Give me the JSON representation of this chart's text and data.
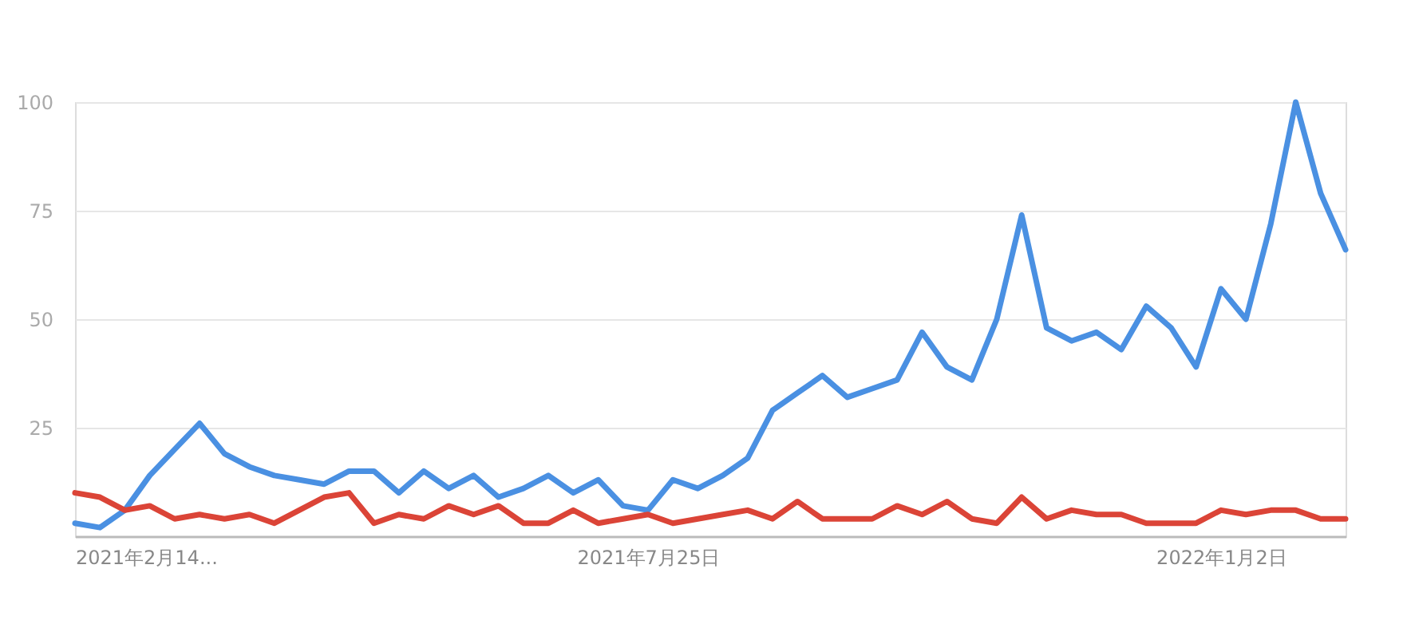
{
  "chart_data": {
    "type": "line",
    "x": [
      "2021-02-14",
      "2021-02-21",
      "2021-02-28",
      "2021-03-07",
      "2021-03-14",
      "2021-03-21",
      "2021-03-28",
      "2021-04-04",
      "2021-04-11",
      "2021-04-18",
      "2021-04-25",
      "2021-05-02",
      "2021-05-09",
      "2021-05-16",
      "2021-05-23",
      "2021-05-30",
      "2021-06-06",
      "2021-06-13",
      "2021-06-20",
      "2021-06-27",
      "2021-07-04",
      "2021-07-11",
      "2021-07-18",
      "2021-07-25",
      "2021-08-01",
      "2021-08-08",
      "2021-08-15",
      "2021-08-22",
      "2021-08-29",
      "2021-09-05",
      "2021-09-12",
      "2021-09-19",
      "2021-09-26",
      "2021-10-03",
      "2021-10-10",
      "2021-10-17",
      "2021-10-24",
      "2021-10-31",
      "2021-11-07",
      "2021-11-14",
      "2021-11-21",
      "2021-11-28",
      "2021-12-05",
      "2021-12-12",
      "2021-12-19",
      "2021-12-26",
      "2022-01-02",
      "2022-01-09",
      "2022-01-16",
      "2022-01-23",
      "2022-01-30",
      "2022-02-06"
    ],
    "series": [
      {
        "color": "#4a90e2",
        "values": [
          3,
          2,
          6,
          14,
          20,
          26,
          19,
          16,
          14,
          13,
          12,
          15,
          15,
          10,
          15,
          11,
          14,
          9,
          11,
          14,
          10,
          13,
          7,
          6,
          13,
          11,
          14,
          18,
          29,
          33,
          37,
          32,
          34,
          36,
          47,
          39,
          36,
          50,
          74,
          48,
          45,
          47,
          43,
          53,
          48,
          39,
          57,
          50,
          72,
          100,
          79,
          66
        ]
      },
      {
        "color": "#db4437",
        "values": [
          10,
          9,
          6,
          7,
          4,
          5,
          4,
          5,
          3,
          6,
          9,
          10,
          3,
          5,
          4,
          7,
          5,
          7,
          3,
          3,
          6,
          3,
          4,
          5,
          3,
          4,
          5,
          6,
          4,
          8,
          4,
          4,
          4,
          7,
          5,
          8,
          4,
          3,
          9,
          4,
          6,
          5,
          5,
          3,
          3,
          3,
          6,
          5,
          6,
          6,
          4,
          4
        ]
      }
    ],
    "xlim": [
      "2021-02-14",
      "2022-02-06"
    ],
    "xticks": [
      {
        "value": "2021-02-14",
        "label": "2021年2月14..."
      },
      {
        "value": "2021-07-25",
        "label": "2021年7月25日"
      },
      {
        "value": "2022-01-02",
        "label": "2022年1月2日"
      }
    ],
    "ylim": [
      0,
      100
    ],
    "yticks": [
      25,
      50,
      75,
      100
    ],
    "grid": "y",
    "legend": false,
    "marker": "none",
    "line_style": "solid"
  }
}
